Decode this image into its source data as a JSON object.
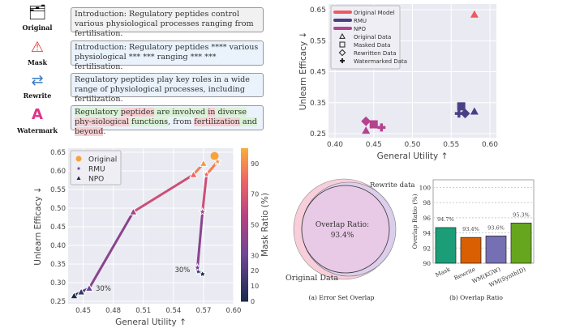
{
  "examples": [
    {
      "label": "Original",
      "icon": "data-hand-icon",
      "text": "Introduction: Regulatory peptides control various physiological processes ranging from fertilisation.",
      "bg": "#f1f1f1"
    },
    {
      "label": "Mask",
      "icon": "masked-document-icon",
      "text": "Introduction: Regulatory peptides **** various physiological *** *** ranging *** *** fertilisation.",
      "bg": "#eaf2fb"
    },
    {
      "label": "Rewrite",
      "icon": "rewrite-document-icon",
      "text": "Regulatory peptides play key roles in a wide range of physiological processes, including fertilization.",
      "bg": "#eaf2fb"
    },
    {
      "label": "Watermark",
      "icon": "watermark-icon",
      "bg": "#eaf2fb",
      "tokens": [
        [
          "Regulatory ",
          "g"
        ],
        [
          "peptides",
          "r"
        ],
        [
          " are involved ",
          "g"
        ],
        [
          "in",
          "r"
        ],
        [
          " diverse ",
          "g"
        ],
        [
          "phy-siological",
          "r"
        ],
        [
          " functions",
          "g"
        ],
        [
          ", from ",
          ""
        ],
        [
          "fertilization",
          "r"
        ],
        [
          " and ",
          "g"
        ],
        [
          "beyond",
          "r"
        ],
        [
          ".",
          ""
        ]
      ]
    }
  ],
  "chart_data": [
    {
      "type": "scatter",
      "id": "method-scatter",
      "xlabel": "General Utility ↑",
      "ylabel": "Unlearn Efficacy ↓",
      "xlim": [
        0.4,
        0.6
      ],
      "ylim": [
        0.25,
        0.65
      ],
      "xticks": [
        "0.40",
        "0.45",
        "0.50",
        "0.55",
        "0.60"
      ],
      "yticks": [
        "0.25",
        "0.35",
        "0.45",
        "0.55",
        "0.65"
      ],
      "grid": true,
      "legend_placement": "top-left",
      "legend": [
        {
          "label": "Original Model",
          "color": "#f0595f",
          "kind": "line"
        },
        {
          "label": "RMU",
          "color": "#4a3f87",
          "kind": "line"
        },
        {
          "label": "NPO",
          "color": "#b5428d",
          "kind": "line"
        },
        {
          "label": "Original Data",
          "kind": "triangle"
        },
        {
          "label": "Masked Data",
          "kind": "square"
        },
        {
          "label": "Rewritten Data",
          "kind": "diamond"
        },
        {
          "label": "Watermarked Data",
          "kind": "plus"
        }
      ],
      "points": [
        {
          "model": "Original Model",
          "data": "Original Data",
          "x": 0.58,
          "y": 0.635,
          "color": "#f0595f",
          "marker": "triangle"
        },
        {
          "model": "RMU",
          "data": "Original Data",
          "x": 0.58,
          "y": 0.322,
          "color": "#4a3f87",
          "marker": "triangle"
        },
        {
          "model": "RMU",
          "data": "Masked Data",
          "x": 0.563,
          "y": 0.338,
          "color": "#4a3f87",
          "marker": "square"
        },
        {
          "model": "RMU",
          "data": "Rewritten Data",
          "x": 0.568,
          "y": 0.315,
          "color": "#4a3f87",
          "marker": "diamond"
        },
        {
          "model": "RMU",
          "data": "Watermarked Data",
          "x": 0.56,
          "y": 0.315,
          "color": "#4a3f87",
          "marker": "plus"
        },
        {
          "model": "NPO",
          "data": "Original Data",
          "x": 0.44,
          "y": 0.26,
          "color": "#b5428d",
          "marker": "triangle"
        },
        {
          "model": "NPO",
          "data": "Masked Data",
          "x": 0.45,
          "y": 0.28,
          "color": "#b5428d",
          "marker": "square"
        },
        {
          "model": "NPO",
          "data": "Rewritten Data",
          "x": 0.44,
          "y": 0.29,
          "color": "#b5428d",
          "marker": "diamond"
        },
        {
          "model": "NPO",
          "data": "Watermarked Data",
          "x": 0.46,
          "y": 0.27,
          "color": "#b5428d",
          "marker": "plus"
        }
      ]
    },
    {
      "type": "line",
      "id": "mask-ratio",
      "xlabel": "General Utility ↑",
      "ylabel": "Unlearn Efficacy ↓",
      "xlim": [
        0.435,
        0.6
      ],
      "ylim": [
        0.25,
        0.65
      ],
      "xticks": [
        "0.45",
        "0.48",
        "0.51",
        "0.54",
        "0.57",
        "0.60"
      ],
      "yticks": [
        "0.25",
        "0.30",
        "0.35",
        "0.40",
        "0.45",
        "0.50",
        "0.55",
        "0.60",
        "0.65"
      ],
      "colorbar": {
        "label": "Mask Ratio (%)",
        "ticks": [
          "0",
          "10",
          "20",
          "30",
          "50",
          "70",
          "90"
        ],
        "range": [
          0,
          100
        ]
      },
      "legend": [
        "Original",
        "RMU",
        "NPO"
      ],
      "legend_placement": "top-left",
      "original": {
        "x": 0.581,
        "y": 0.64
      },
      "series": [
        {
          "name": "NPO",
          "marker": "triangle",
          "points": [
            [
              0.441,
              0.265,
              0
            ],
            [
              0.448,
              0.275,
              10
            ],
            [
              0.456,
              0.285,
              30
            ],
            [
              0.5,
              0.49,
              50
            ],
            [
              0.56,
              0.59,
              80
            ],
            [
              0.57,
              0.62,
              95
            ]
          ]
        },
        {
          "name": "RMU",
          "marker": "star",
          "points": [
            [
              0.569,
              0.323,
              0
            ],
            [
              0.565,
              0.33,
              10
            ],
            [
              0.564,
              0.34,
              30
            ],
            [
              0.569,
              0.49,
              50
            ],
            [
              0.573,
              0.59,
              80
            ],
            [
              0.584,
              0.625,
              95
            ]
          ]
        }
      ],
      "annotations": [
        "30%",
        "30%"
      ]
    },
    {
      "type": "venn",
      "id": "error-set-overlap",
      "sets": [
        "Original Data",
        "Rewrite data"
      ],
      "overlap_label": "Overlap Ratio:",
      "overlap_value": "93.4%",
      "caption": "(a) Error Set Overlap"
    },
    {
      "type": "bar",
      "id": "overlap-ratio",
      "categories": [
        "Mask",
        "Rewrite",
        "WM(KGW)",
        "WM(SynthID)"
      ],
      "values": [
        94.7,
        93.4,
        93.6,
        95.3
      ],
      "labels": [
        "94.7%",
        "93.4%",
        "93.6%",
        "95.3%"
      ],
      "colors": [
        "#1b9e77",
        "#d95f02",
        "#7570b3",
        "#66a61e"
      ],
      "ylabel": "Overlap Ratio (%)",
      "ylim": [
        90,
        101
      ],
      "yticks": [
        "90",
        "92",
        "94",
        "96",
        "98",
        "100"
      ],
      "caption": "(b) Overlap Ratio"
    }
  ]
}
